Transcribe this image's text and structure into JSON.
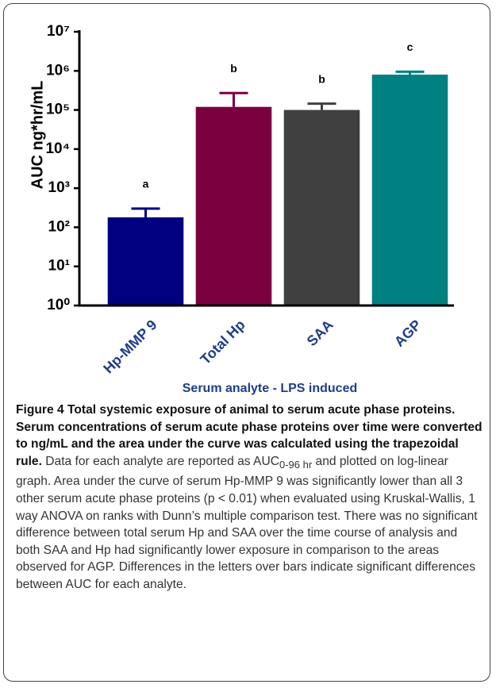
{
  "chart_data": {
    "type": "bar",
    "y_label": "AUC ng*hr/mL",
    "x_label": "Serum analyte - LPS induced",
    "categories": [
      "Hp-MMP 9",
      "Total Hp",
      "SAA",
      "AGP"
    ],
    "values": [
      180,
      120000,
      100000,
      800000
    ],
    "errors": [
      120,
      150000,
      45000,
      150000
    ],
    "annotations": [
      "a",
      "b",
      "b",
      "c"
    ],
    "colors": [
      "#000080",
      "#7a0040",
      "#404040",
      "#008080"
    ],
    "log_y": true,
    "ylim": [
      1,
      10000000
    ],
    "yticks": [
      {
        "value": 1,
        "label": "10⁰"
      },
      {
        "value": 10,
        "label": "10¹"
      },
      {
        "value": 100,
        "label": "10²"
      },
      {
        "value": 1000,
        "label": "10³"
      },
      {
        "value": 10000,
        "label": "10⁴"
      },
      {
        "value": 100000,
        "label": "10⁵"
      },
      {
        "value": 1000000,
        "label": "10⁶"
      },
      {
        "value": 10000000,
        "label": "10⁷"
      }
    ]
  },
  "caption": {
    "label": "Figure 4",
    "title": " Total systemic exposure of animal to serum acute phase proteins. Serum concentrations of serum acute phase proteins over time were converted to ng/mL and the area under the curve was calculated using the trapezoidal rule.",
    "text_before": " Data for each analyte are reported as AUC",
    "subscript": "0-96 hr",
    "text_after": " and plotted on log-linear graph. Area under the curve of serum Hp-MMP 9 was significantly lower than all 3 other serum acute phase proteins (p < 0.01) when evaluated using Kruskal-Wallis, 1 way ANOVA on ranks with Dunn’s multiple comparison test. There was no significant difference between total serum Hp and SAA over the time course of analysis and both SAA and Hp had significantly lower exposure in comparison to the areas observed for AGP. Differences in the letters over bars indicate significant differences between AUC for each analyte."
  }
}
